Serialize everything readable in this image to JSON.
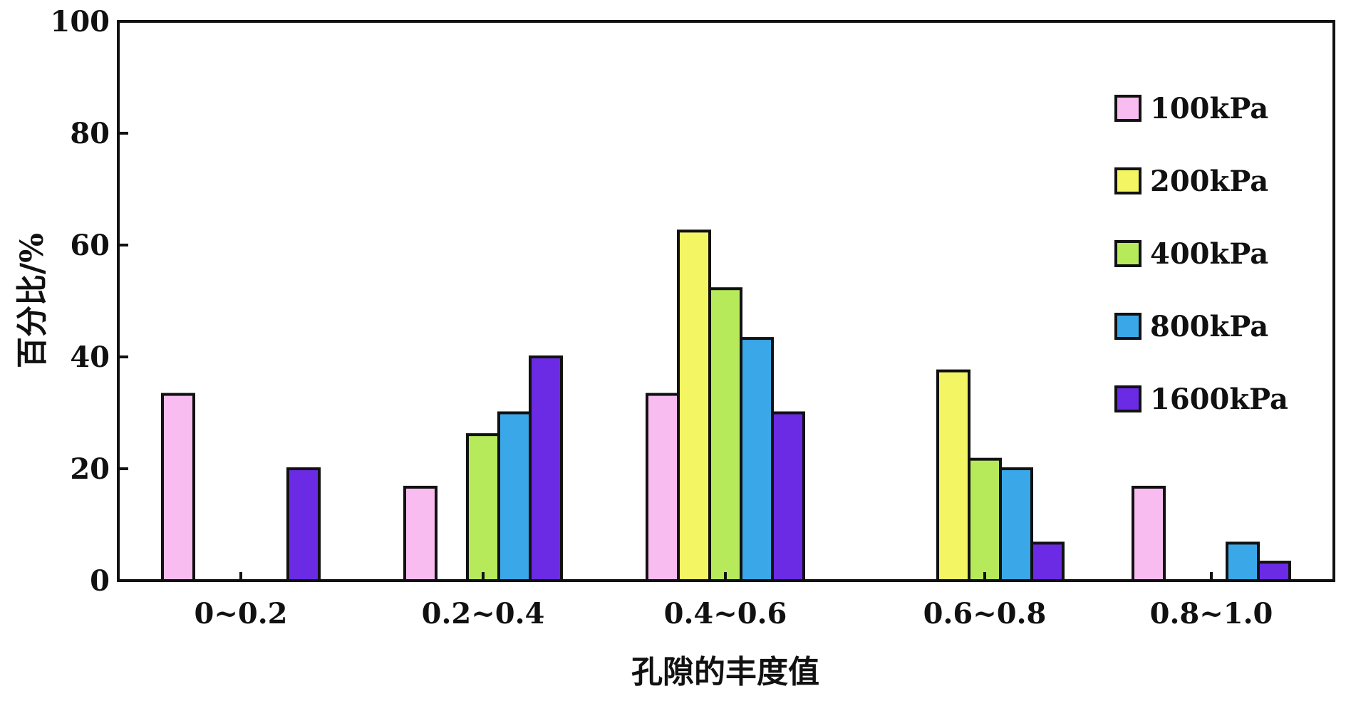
{
  "chart_data": {
    "type": "bar",
    "title": "",
    "xlabel": "孔隙的丰度值",
    "ylabel": "百分比/%",
    "categories": [
      "0~0.2",
      "0.2~0.4",
      "0.4~0.6",
      "0.6~0.8",
      "0.8~1.0"
    ],
    "ylim": [
      0,
      100
    ],
    "yticks": [
      "0",
      "20",
      "40",
      "60",
      "80",
      "100"
    ],
    "grid": false,
    "legend_position": "top-right",
    "series": [
      {
        "name": "100kPa",
        "color": "#F8BCF0",
        "values": [
          33.3,
          16.7,
          33.3,
          0,
          16.7
        ]
      },
      {
        "name": "200kPa",
        "color": "#F4F563",
        "values": [
          0,
          0,
          62.5,
          37.5,
          0
        ]
      },
      {
        "name": "400kPa",
        "color": "#B6EA5A",
        "values": [
          0,
          26.1,
          52.2,
          21.7,
          0
        ]
      },
      {
        "name": "800kPa",
        "color": "#3AA8E8",
        "values": [
          0,
          30.0,
          43.3,
          20.0,
          6.7
        ]
      },
      {
        "name": "1600kPa",
        "color": "#6B2AE4",
        "values": [
          20.0,
          40.0,
          30.0,
          6.7,
          3.3
        ]
      }
    ]
  }
}
